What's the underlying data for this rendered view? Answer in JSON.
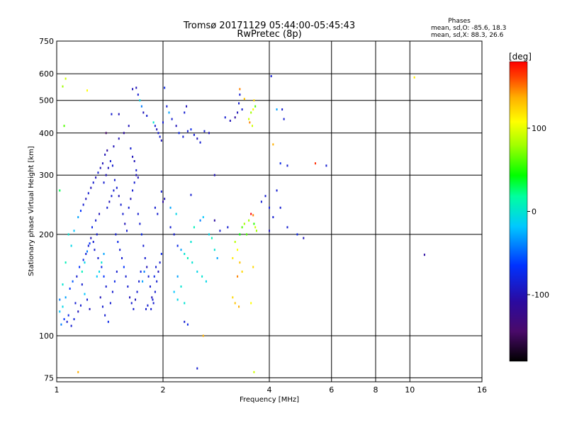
{
  "chart_data": {
    "type": "scatter",
    "title": "Tromsø 20171129 05:44:00-05:45:43",
    "subtitle": "RwPretec (8p)",
    "stats": {
      "heading": "Phases",
      "line_o": "mean, sd,O: -85.6, 18.3",
      "line_x": "mean, sd,X: 88.3, 26.6"
    },
    "xlabel": "Frequency [MHz]",
    "ylabel": "Stationary phase Virtual Height [km]",
    "x_scale": "log",
    "y_scale": "log",
    "xlim": [
      1,
      16
    ],
    "ylim": [
      73,
      750
    ],
    "x_ticks": [
      1,
      2,
      4,
      6,
      8,
      10,
      16
    ],
    "y_ticks": [
      75,
      100,
      200,
      300,
      400,
      500,
      600,
      750
    ],
    "grid": true,
    "colorbar": {
      "label": "[deg]",
      "range": [
        -180,
        180
      ],
      "ticks": [
        100,
        0,
        -100
      ],
      "colormap": "rainbow"
    },
    "points_phase_deg": "each point coloured by phase",
    "points": [
      [
        1.03,
        108,
        -60
      ],
      [
        1.05,
        112,
        -80
      ],
      [
        1.07,
        110,
        -100
      ],
      [
        1.02,
        118,
        -40
      ],
      [
        1.04,
        122,
        -30
      ],
      [
        1.08,
        115,
        -90
      ],
      [
        1.1,
        107,
        -100
      ],
      [
        1.12,
        112,
        -95
      ],
      [
        1.06,
        130,
        -50
      ],
      [
        1.09,
        138,
        -80
      ],
      [
        1.13,
        125,
        -100
      ],
      [
        1.15,
        118,
        -110
      ],
      [
        1.17,
        123,
        -100
      ],
      [
        1.11,
        145,
        -70
      ],
      [
        1.14,
        150,
        -100
      ],
      [
        1.18,
        142,
        -100
      ],
      [
        1.2,
        133,
        -40
      ],
      [
        1.22,
        128,
        -100
      ],
      [
        1.24,
        120,
        -110
      ],
      [
        1.16,
        160,
        -80
      ],
      [
        1.19,
        168,
        -90
      ],
      [
        1.21,
        175,
        -100
      ],
      [
        1.23,
        185,
        -100
      ],
      [
        1.25,
        195,
        -110
      ],
      [
        1.27,
        190,
        -100
      ],
      [
        1.3,
        200,
        -100
      ],
      [
        1.26,
        210,
        -90
      ],
      [
        1.29,
        220,
        -100
      ],
      [
        1.32,
        230,
        -110
      ],
      [
        1.28,
        180,
        -100
      ],
      [
        1.31,
        170,
        -100
      ],
      [
        1.34,
        160,
        -90
      ],
      [
        1.36,
        150,
        -80
      ],
      [
        1.38,
        140,
        -100
      ],
      [
        1.33,
        130,
        -110
      ],
      [
        1.35,
        122,
        -100
      ],
      [
        1.37,
        115,
        -100
      ],
      [
        1.4,
        110,
        -90
      ],
      [
        1.42,
        125,
        -100
      ],
      [
        1.44,
        135,
        -100
      ],
      [
        1.46,
        145,
        -90
      ],
      [
        1.48,
        155,
        -100
      ],
      [
        1.39,
        240,
        -100
      ],
      [
        1.41,
        250,
        -110
      ],
      [
        1.43,
        260,
        -100
      ],
      [
        1.45,
        270,
        -100
      ],
      [
        1.36,
        285,
        -100
      ],
      [
        1.38,
        300,
        -110
      ],
      [
        1.4,
        315,
        -110
      ],
      [
        1.42,
        330,
        -100
      ],
      [
        1.37,
        345,
        -110
      ],
      [
        1.39,
        355,
        -120
      ],
      [
        1.44,
        320,
        -100
      ],
      [
        1.46,
        290,
        -100
      ],
      [
        1.48,
        275,
        -100
      ],
      [
        1.5,
        260,
        -110
      ],
      [
        1.52,
        245,
        -100
      ],
      [
        1.54,
        230,
        -100
      ],
      [
        1.56,
        215,
        -110
      ],
      [
        1.58,
        205,
        -100
      ],
      [
        1.47,
        200,
        -100
      ],
      [
        1.49,
        190,
        -90
      ],
      [
        1.51,
        180,
        -100
      ],
      [
        1.53,
        170,
        -100
      ],
      [
        1.55,
        160,
        -80
      ],
      [
        1.57,
        150,
        -100
      ],
      [
        1.59,
        140,
        -100
      ],
      [
        1.61,
        130,
        -110
      ],
      [
        1.63,
        125,
        -100
      ],
      [
        1.65,
        120,
        -100
      ],
      [
        1.67,
        128,
        -110
      ],
      [
        1.69,
        135,
        -100
      ],
      [
        1.71,
        145,
        -100
      ],
      [
        1.73,
        155,
        -90
      ],
      [
        1.6,
        240,
        -100
      ],
      [
        1.62,
        255,
        -110
      ],
      [
        1.64,
        270,
        -100
      ],
      [
        1.66,
        285,
        -100
      ],
      [
        1.68,
        300,
        -110
      ],
      [
        1.7,
        230,
        -100
      ],
      [
        1.72,
        215,
        -100
      ],
      [
        1.74,
        200,
        -90
      ],
      [
        1.76,
        185,
        -100
      ],
      [
        1.78,
        170,
        -100
      ],
      [
        1.8,
        160,
        -110
      ],
      [
        1.82,
        150,
        -100
      ],
      [
        1.84,
        140,
        -100
      ],
      [
        1.86,
        130,
        -110
      ],
      [
        1.88,
        125,
        -100
      ],
      [
        1.9,
        135,
        -100
      ],
      [
        1.92,
        145,
        -100
      ],
      [
        1.94,
        155,
        -110
      ],
      [
        1.96,
        165,
        -100
      ],
      [
        1.98,
        175,
        -90
      ],
      [
        1.85,
        120,
        -100
      ],
      [
        1.87,
        128,
        -100
      ],
      [
        1.89,
        150,
        -90
      ],
      [
        1.91,
        160,
        -100
      ],
      [
        1.75,
        145,
        -50
      ],
      [
        1.77,
        155,
        -60
      ],
      [
        1.79,
        120,
        -100
      ],
      [
        1.81,
        123,
        -100
      ],
      [
        1.3,
        150,
        -40
      ],
      [
        1.32,
        155,
        -30
      ],
      [
        1.34,
        165,
        -20
      ],
      [
        1.36,
        175,
        -50
      ],
      [
        1.18,
        155,
        -10
      ],
      [
        1.2,
        165,
        -30
      ],
      [
        1.22,
        178,
        -60
      ],
      [
        1.24,
        188,
        -80
      ],
      [
        1.1,
        185,
        -30
      ],
      [
        1.08,
        200,
        -20
      ],
      [
        1.12,
        205,
        -40
      ],
      [
        1.06,
        165,
        -10
      ],
      [
        1.04,
        142,
        -20
      ],
      [
        1.02,
        128,
        -60
      ],
      [
        1.15,
        225,
        -50
      ],
      [
        1.17,
        235,
        -80
      ],
      [
        1.19,
        245,
        -100
      ],
      [
        1.21,
        255,
        -110
      ],
      [
        1.23,
        265,
        -100
      ],
      [
        1.25,
        275,
        -110
      ],
      [
        1.27,
        285,
        -100
      ],
      [
        1.29,
        295,
        -110
      ],
      [
        1.31,
        305,
        -100
      ],
      [
        1.33,
        315,
        -110
      ],
      [
        1.35,
        325,
        -110
      ],
      [
        1.45,
        365,
        -110
      ],
      [
        1.5,
        385,
        -110
      ],
      [
        1.55,
        400,
        -120
      ],
      [
        1.6,
        420,
        -110
      ],
      [
        1.62,
        360,
        -100
      ],
      [
        1.64,
        340,
        -110
      ],
      [
        1.66,
        330,
        -110
      ],
      [
        1.68,
        310,
        -100
      ],
      [
        1.7,
        295,
        -110
      ],
      [
        1.05,
        420,
        40
      ],
      [
        1.02,
        270,
        10
      ],
      [
        1.04,
        550,
        60
      ],
      [
        1.06,
        580,
        80
      ],
      [
        1.22,
        535,
        100
      ],
      [
        1.15,
        78,
        140
      ],
      [
        1.38,
        400,
        -150
      ],
      [
        1.43,
        455,
        -100
      ],
      [
        1.5,
        455,
        -110
      ],
      [
        1.64,
        540,
        -110
      ],
      [
        1.68,
        545,
        -110
      ],
      [
        1.7,
        520,
        -100
      ],
      [
        1.72,
        500,
        -30
      ],
      [
        1.74,
        480,
        -60
      ],
      [
        1.76,
        460,
        -110
      ],
      [
        1.8,
        450,
        -100
      ],
      [
        1.88,
        430,
        -20
      ],
      [
        1.9,
        420,
        -100
      ],
      [
        1.92,
        410,
        -110
      ],
      [
        1.94,
        400,
        -100
      ],
      [
        1.96,
        390,
        -100
      ],
      [
        1.98,
        380,
        -110
      ],
      [
        2.0,
        430,
        -100
      ],
      [
        2.02,
        545,
        -90
      ],
      [
        2.05,
        480,
        -100
      ],
      [
        2.08,
        460,
        -50
      ],
      [
        2.12,
        440,
        -100
      ],
      [
        2.18,
        420,
        -110
      ],
      [
        2.22,
        400,
        -90
      ],
      [
        2.28,
        390,
        -100
      ],
      [
        2.35,
        405,
        -100
      ],
      [
        2.4,
        410,
        -90
      ],
      [
        2.45,
        395,
        -100
      ],
      [
        2.5,
        385,
        -110
      ],
      [
        2.55,
        375,
        -100
      ],
      [
        2.62,
        405,
        -100
      ],
      [
        2.7,
        400,
        -110
      ],
      [
        2.3,
        460,
        -100
      ],
      [
        2.33,
        480,
        -110
      ],
      [
        1.98,
        268,
        -100
      ],
      [
        2.02,
        255,
        -110
      ],
      [
        1.9,
        240,
        -100
      ],
      [
        1.93,
        230,
        -100
      ],
      [
        2.1,
        210,
        -100
      ],
      [
        2.15,
        200,
        -100
      ],
      [
        2.2,
        185,
        -90
      ],
      [
        2.25,
        180,
        -50
      ],
      [
        2.3,
        175,
        -20
      ],
      [
        2.35,
        170,
        -10
      ],
      [
        2.42,
        165,
        -20
      ],
      [
        2.5,
        155,
        -30
      ],
      [
        2.58,
        150,
        -20
      ],
      [
        2.65,
        145,
        -30
      ],
      [
        2.2,
        150,
        -50
      ],
      [
        2.25,
        140,
        -20
      ],
      [
        2.15,
        135,
        -40
      ],
      [
        2.2,
        128,
        -30
      ],
      [
        2.3,
        125,
        -20
      ],
      [
        2.1,
        240,
        -50
      ],
      [
        2.18,
        230,
        -30
      ],
      [
        2.4,
        190,
        -20
      ],
      [
        2.45,
        210,
        -10
      ],
      [
        2.55,
        220,
        -60
      ],
      [
        2.6,
        225,
        -40
      ],
      [
        2.7,
        200,
        -30
      ],
      [
        2.75,
        195,
        -10
      ],
      [
        2.8,
        180,
        -20
      ],
      [
        2.85,
        170,
        -50
      ],
      [
        2.3,
        110,
        -100
      ],
      [
        2.35,
        108,
        -90
      ],
      [
        2.5,
        80,
        -100
      ],
      [
        2.6,
        100,
        140
      ],
      [
        2.0,
        250,
        -120
      ],
      [
        2.4,
        262,
        -100
      ],
      [
        2.8,
        300,
        -110
      ],
      [
        3.0,
        445,
        -100
      ],
      [
        3.1,
        435,
        -110
      ],
      [
        3.2,
        445,
        -120
      ],
      [
        3.25,
        460,
        -110
      ],
      [
        3.28,
        490,
        -100
      ],
      [
        3.3,
        520,
        -100
      ],
      [
        3.35,
        470,
        -100
      ],
      [
        3.5,
        440,
        80
      ],
      [
        3.55,
        460,
        60
      ],
      [
        3.6,
        470,
        100
      ],
      [
        3.65,
        480,
        40
      ],
      [
        3.62,
        500,
        120
      ],
      [
        3.58,
        420,
        80
      ],
      [
        3.52,
        430,
        150
      ],
      [
        3.3,
        540,
        150
      ],
      [
        3.4,
        505,
        130
      ],
      [
        3.6,
        228,
        150
      ],
      [
        3.62,
        215,
        30
      ],
      [
        3.65,
        210,
        80
      ],
      [
        3.68,
        205,
        60
      ],
      [
        3.55,
        230,
        180
      ],
      [
        3.5,
        220,
        60
      ],
      [
        3.45,
        200,
        40
      ],
      [
        3.3,
        200,
        20
      ],
      [
        3.35,
        210,
        40
      ],
      [
        3.4,
        215,
        60
      ],
      [
        3.2,
        190,
        70
      ],
      [
        3.25,
        180,
        100
      ],
      [
        3.15,
        170,
        110
      ],
      [
        3.3,
        165,
        130
      ],
      [
        3.35,
        155,
        120
      ],
      [
        3.25,
        150,
        150
      ],
      [
        3.15,
        130,
        120
      ],
      [
        3.2,
        125,
        130
      ],
      [
        3.28,
        122,
        140
      ],
      [
        3.6,
        160,
        120
      ],
      [
        3.55,
        125,
        100
      ],
      [
        3.62,
        78,
        80
      ],
      [
        3.05,
        210,
        -100
      ],
      [
        2.9,
        205,
        -100
      ],
      [
        2.8,
        220,
        -120
      ],
      [
        3.8,
        250,
        -100
      ],
      [
        3.9,
        260,
        -100
      ],
      [
        4.0,
        240,
        -100
      ],
      [
        4.1,
        225,
        -100
      ],
      [
        4.2,
        270,
        -100
      ],
      [
        4.3,
        240,
        -100
      ],
      [
        4.5,
        210,
        -100
      ],
      [
        4.8,
        200,
        -90
      ],
      [
        5.0,
        195,
        -110
      ],
      [
        4.05,
        590,
        -100
      ],
      [
        4.2,
        470,
        -50
      ],
      [
        4.35,
        470,
        -100
      ],
      [
        4.4,
        440,
        -100
      ],
      [
        4.1,
        370,
        140
      ],
      [
        4.3,
        325,
        -90
      ],
      [
        4.5,
        320,
        -100
      ],
      [
        5.4,
        325,
        170
      ],
      [
        5.8,
        320,
        -100
      ],
      [
        4.0,
        205,
        -110
      ],
      [
        10.3,
        585,
        110
      ],
      [
        11.0,
        174,
        -120
      ]
    ]
  }
}
